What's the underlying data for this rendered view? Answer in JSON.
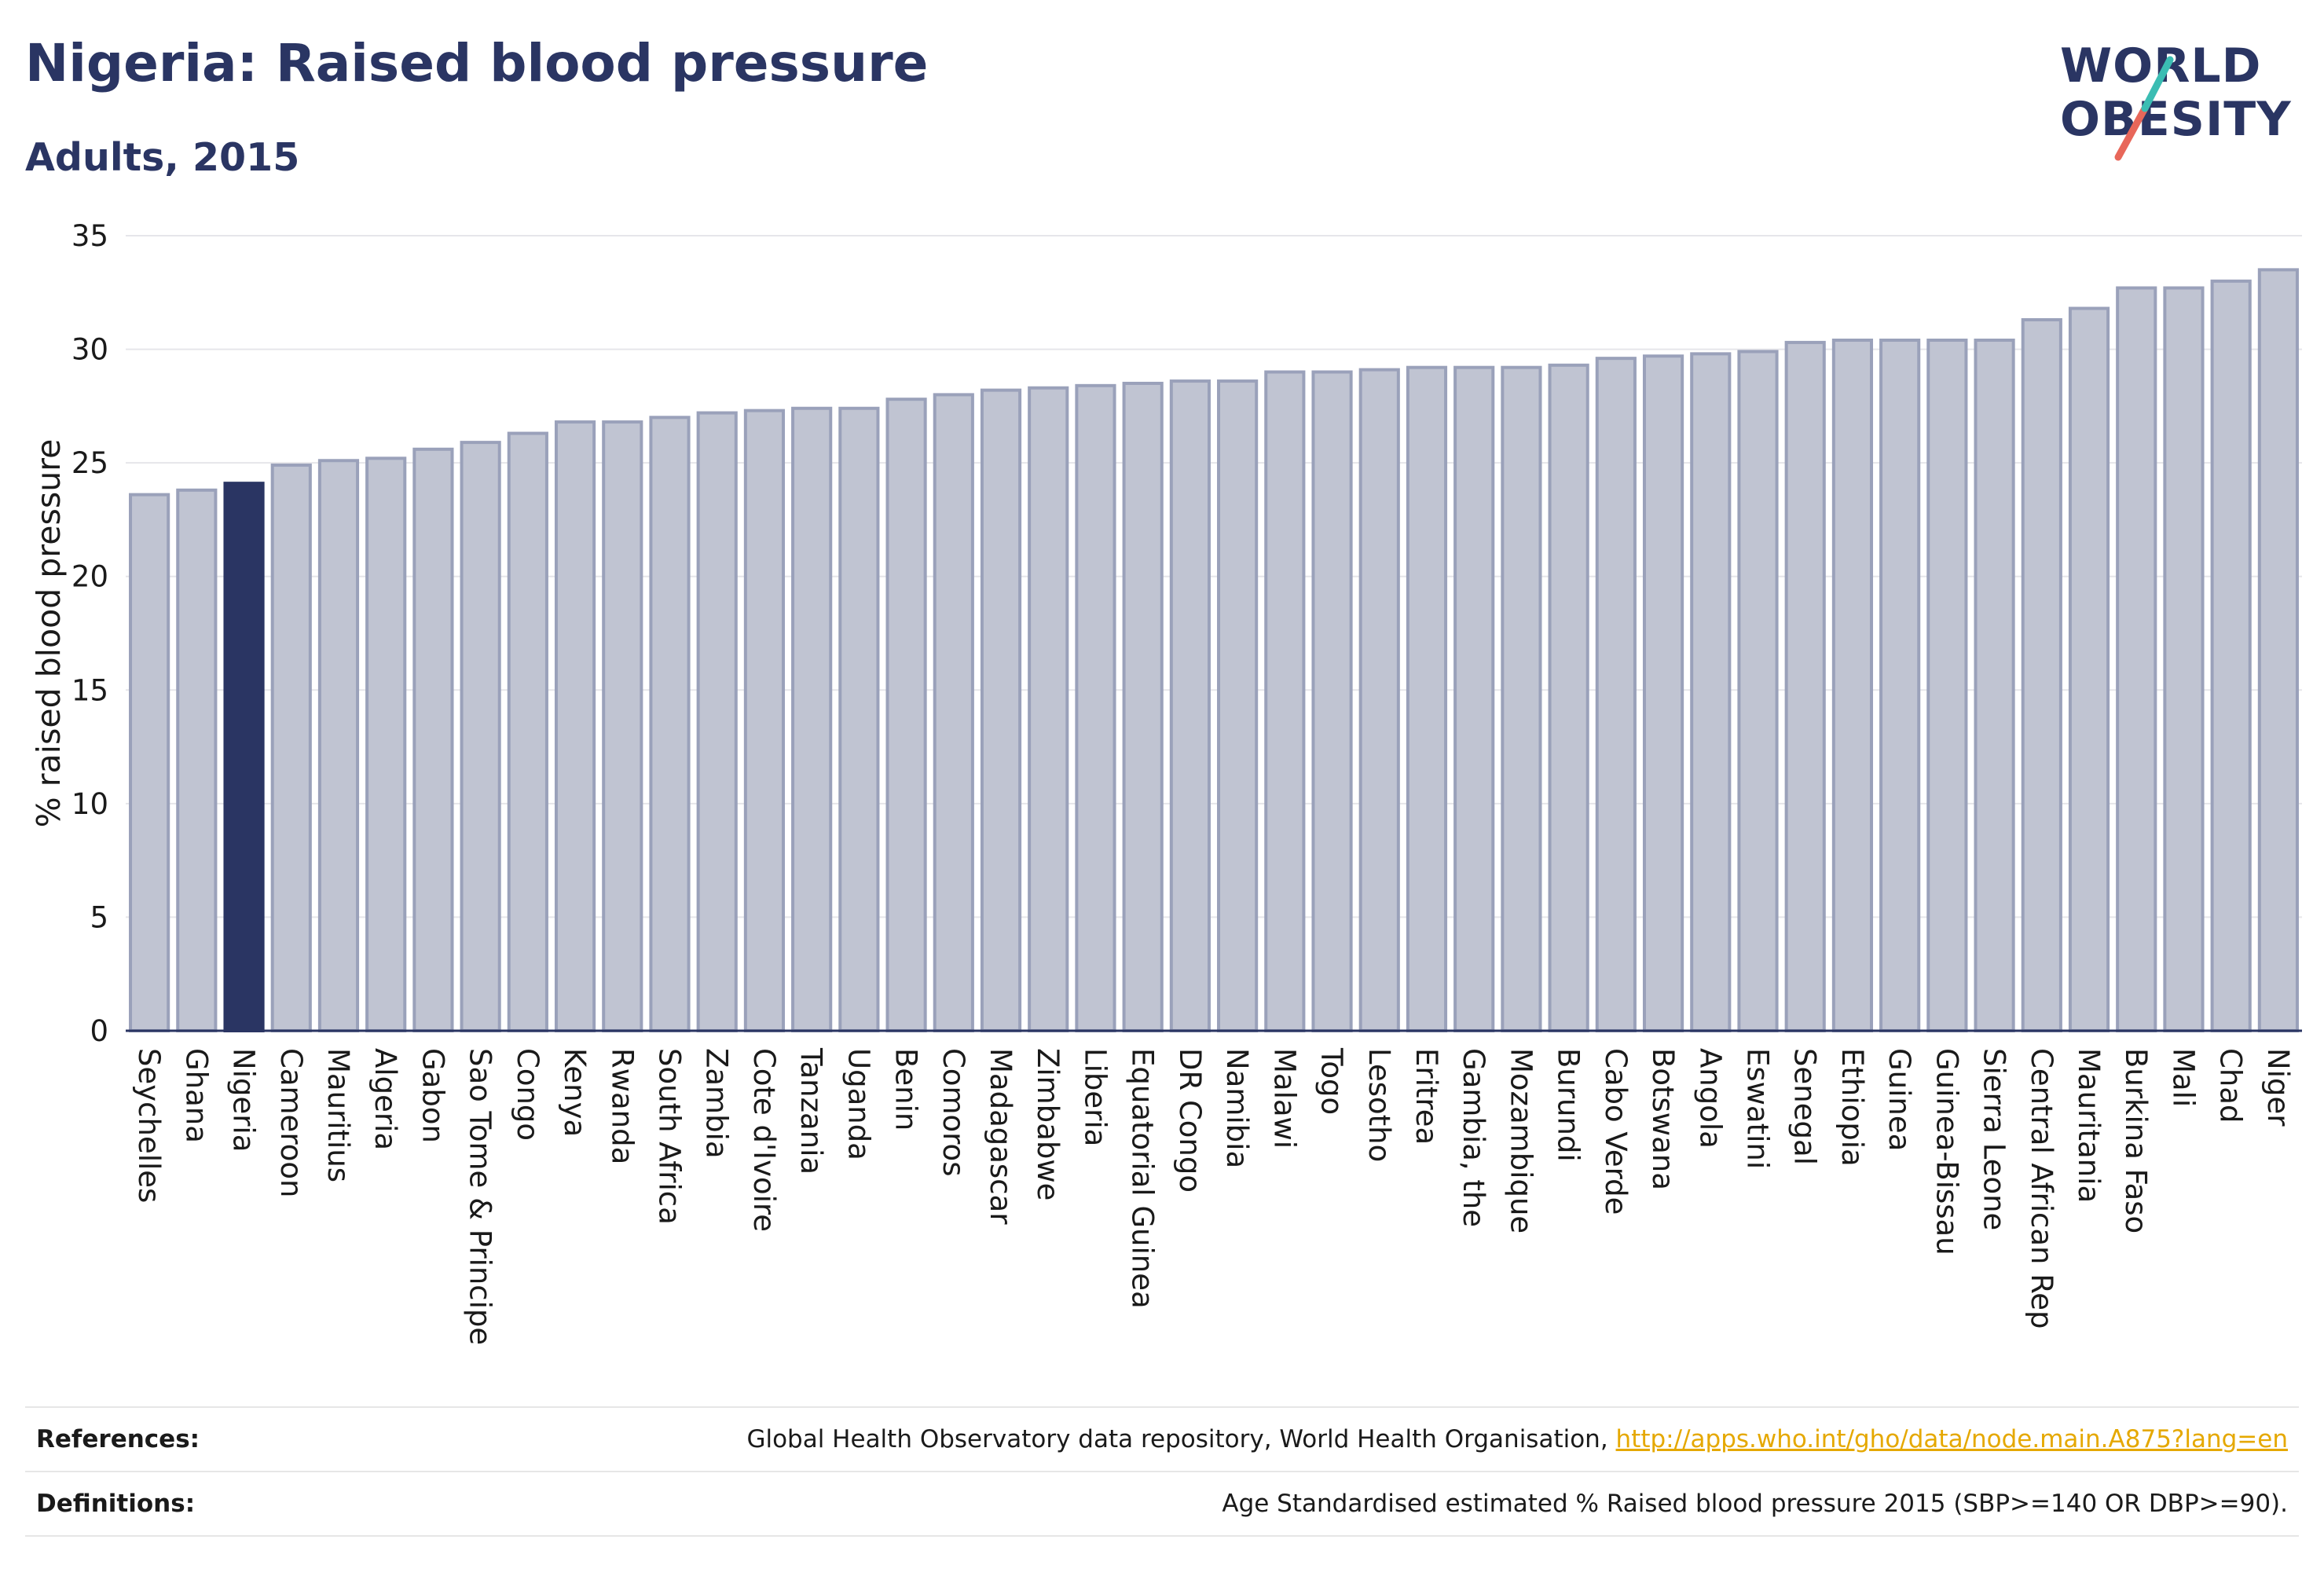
{
  "header": {
    "title": "Nigeria: Raised blood pressure",
    "subtitle": "Adults, 2015"
  },
  "logo": {
    "line1": "WORLD",
    "line2": "OBESITY",
    "colors": {
      "text": "#2a3563",
      "stroke_top": "#3bbdb3",
      "stroke_bottom": "#e8675a"
    }
  },
  "chart_data": {
    "type": "bar",
    "title": "Nigeria: Raised blood pressure",
    "subtitle": "Adults, 2015",
    "xlabel": "",
    "ylabel": "% raised blood pressure",
    "ylim": [
      0,
      35
    ],
    "yticks": [
      0,
      5,
      10,
      15,
      20,
      25,
      30,
      35
    ],
    "grid": true,
    "highlight": "Nigeria",
    "colors": {
      "bar": "#c0c4d2",
      "bar_border": "#9aa1ba",
      "highlight": "#2a3563",
      "axis": "#2a3563",
      "grid": "#e6e6ea"
    },
    "categories": [
      "Seychelles",
      "Ghana",
      "Nigeria",
      "Cameroon",
      "Mauritius",
      "Algeria",
      "Gabon",
      "Sao Tome & Principe",
      "Congo",
      "Kenya",
      "Rwanda",
      "South Africa",
      "Zambia",
      "Cote d'Ivoire",
      "Tanzania",
      "Uganda",
      "Benin",
      "Comoros",
      "Madagascar",
      "Zimbabwe",
      "Liberia",
      "Equatorial Guinea",
      "DR Congo",
      "Namibia",
      "Malawi",
      "Togo",
      "Lesotho",
      "Eritrea",
      "Gambia, the",
      "Mozambique",
      "Burundi",
      "Cabo Verde",
      "Botswana",
      "Angola",
      "Eswatini",
      "Senegal",
      "Ethiopia",
      "Guinea",
      "Guinea-Bissau",
      "Sierra Leone",
      "Central African Rep",
      "Mauritania",
      "Burkina Faso",
      "Mali",
      "Chad",
      "Niger"
    ],
    "values": [
      23.6,
      23.8,
      24.1,
      24.9,
      25.1,
      25.2,
      25.6,
      25.9,
      26.3,
      26.8,
      26.8,
      27.0,
      27.2,
      27.3,
      27.4,
      27.4,
      27.8,
      28.0,
      28.2,
      28.3,
      28.4,
      28.5,
      28.6,
      28.6,
      29.0,
      29.0,
      29.1,
      29.2,
      29.2,
      29.2,
      29.3,
      29.6,
      29.7,
      29.8,
      29.9,
      30.3,
      30.4,
      30.4,
      30.4,
      30.4,
      31.3,
      31.8,
      32.7,
      32.7,
      33.0,
      33.5
    ]
  },
  "footer": {
    "references_label": "References:",
    "references_text": "Global Health Observatory data repository, World Health Organisation, ",
    "references_link": "http://apps.who.int/gho/data/node.main.A875?lang=en",
    "definitions_label": "Definitions:",
    "definitions_text": "Age Standardised estimated % Raised blood pressure 2015 (SBP>=140 OR DBP>=90)."
  }
}
